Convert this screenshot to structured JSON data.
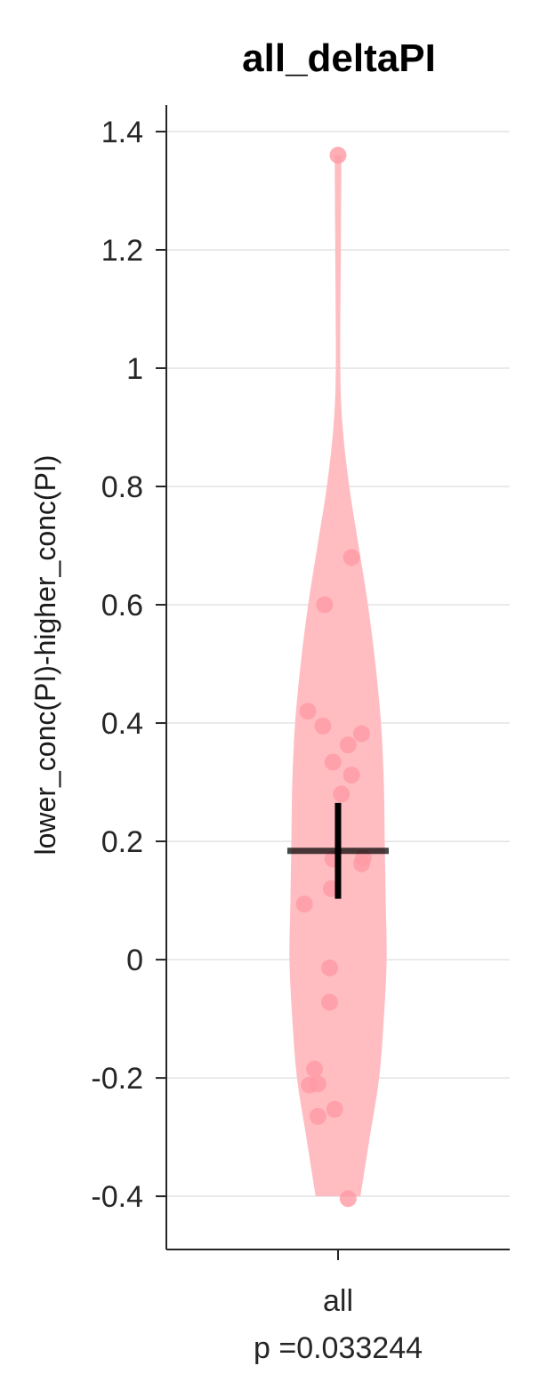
{
  "chart_data": {
    "type": "violin",
    "title": "all_deltaPI",
    "ylabel": "lower_conc(PI)-higher_conc(PI)",
    "ylim": [
      -0.49,
      1.445
    ],
    "yticks": [
      -0.4,
      -0.2,
      0,
      0.2,
      0.4,
      0.6,
      0.8,
      1,
      1.2,
      1.4
    ],
    "ytick_labels": [
      "-0.4",
      "-0.2",
      "0",
      "0.2",
      "0.4",
      "0.6",
      "0.8",
      "1",
      "1.2",
      "1.4"
    ],
    "grid": true,
    "categories": [
      "all"
    ],
    "annotation": "p =0.033244",
    "colors": {
      "violin": "#ffbdc2",
      "points": "#ff9aa4",
      "mean_line": "#000000"
    },
    "series": [
      {
        "category": "all",
        "points": [
          {
            "x": 0.0,
            "y": 1.36
          },
          {
            "x": 0.08,
            "y": 0.68
          },
          {
            "x": -0.08,
            "y": 0.6
          },
          {
            "x": -0.18,
            "y": 0.42
          },
          {
            "x": -0.09,
            "y": 0.395
          },
          {
            "x": 0.14,
            "y": 0.382
          },
          {
            "x": 0.06,
            "y": 0.363
          },
          {
            "x": -0.03,
            "y": 0.334
          },
          {
            "x": 0.08,
            "y": 0.312
          },
          {
            "x": 0.02,
            "y": 0.28
          },
          {
            "x": 0.15,
            "y": 0.172
          },
          {
            "x": -0.03,
            "y": 0.17
          },
          {
            "x": 0.14,
            "y": 0.162
          },
          {
            "x": -0.04,
            "y": 0.12
          },
          {
            "x": -0.2,
            "y": 0.094
          },
          {
            "x": -0.05,
            "y": -0.014
          },
          {
            "x": -0.05,
            "y": -0.072
          },
          {
            "x": -0.14,
            "y": -0.185
          },
          {
            "x": -0.17,
            "y": -0.212
          },
          {
            "x": -0.12,
            "y": -0.21
          },
          {
            "x": -0.02,
            "y": -0.253
          },
          {
            "x": -0.12,
            "y": -0.265
          },
          {
            "x": 0.06,
            "y": -0.404
          }
        ],
        "mean": 0.184,
        "ci": [
          0.103,
          0.265
        ],
        "violin_profile": [
          {
            "y": -0.4,
            "w": 0.12
          },
          {
            "y": -0.3,
            "w": 0.17
          },
          {
            "y": -0.2,
            "w": 0.22
          },
          {
            "y": -0.1,
            "w": 0.245
          },
          {
            "y": 0.0,
            "w": 0.26
          },
          {
            "y": 0.1,
            "w": 0.255
          },
          {
            "y": 0.2,
            "w": 0.25
          },
          {
            "y": 0.3,
            "w": 0.245
          },
          {
            "y": 0.4,
            "w": 0.23
          },
          {
            "y": 0.5,
            "w": 0.2
          },
          {
            "y": 0.6,
            "w": 0.16
          },
          {
            "y": 0.7,
            "w": 0.11
          },
          {
            "y": 0.8,
            "w": 0.06
          },
          {
            "y": 0.9,
            "w": 0.025
          },
          {
            "y": 1.0,
            "w": 0.012
          },
          {
            "y": 1.2,
            "w": 0.015
          },
          {
            "y": 1.36,
            "w": 0.018
          }
        ]
      }
    ]
  }
}
